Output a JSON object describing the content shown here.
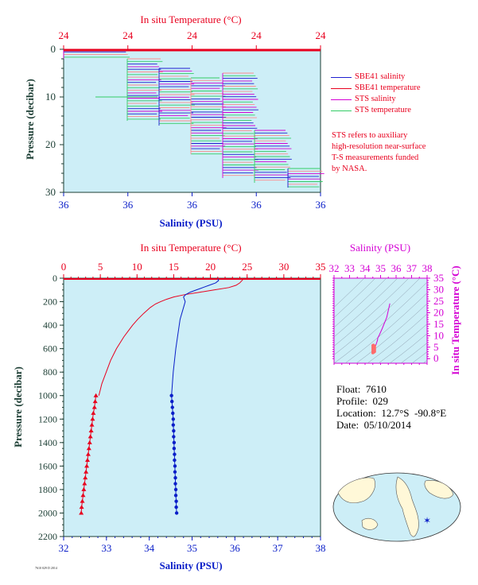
{
  "chart_data": [
    {
      "type": "line",
      "title": "",
      "top_axis": {
        "label": "In situ Temperature (°C)",
        "ticks": [
          "24",
          "24",
          "24",
          "24",
          "24"
        ]
      },
      "bottom_axis": {
        "label": "Salinity (PSU)",
        "ticks": [
          "36",
          "36",
          "36",
          "36",
          "36"
        ]
      },
      "left_axis": {
        "label": "Pressure (decibar)",
        "ticks": [
          0,
          10,
          20,
          30
        ],
        "ylim": [
          0,
          30
        ],
        "inverted": true
      },
      "legend": [
        {
          "name": "SBE41 salinity",
          "color": "#1f1fd0"
        },
        {
          "name": "SBE41 temperature",
          "color": "#e8001e"
        },
        {
          "name": "STS salinity",
          "color": "#d400d4"
        },
        {
          "name": "STS temperature",
          "color": "#33cc66"
        }
      ],
      "note": [
        "STS refers to auxiliary",
        "high-resolution near-surface",
        "T-S measurements funded",
        "by NASA."
      ],
      "colors": {
        "background": "#cdeef7",
        "sbe_sal": "#1f1fd0",
        "sbe_temp": "#e8001e",
        "sts_sal": "#d400d4",
        "sts_temp": "#33cc66",
        "sts_temp_light": "#ff8c8c"
      }
    },
    {
      "type": "line",
      "title": "",
      "top_axis": {
        "label": "In situ Temperature (°C)",
        "ticks": [
          0,
          5,
          10,
          15,
          20,
          25,
          30,
          35
        ],
        "xlim": [
          0,
          35
        ]
      },
      "bottom_axis": {
        "label": "Salinity (PSU)",
        "ticks": [
          32,
          33,
          34,
          35,
          36,
          37,
          38
        ],
        "xlim": [
          32,
          38
        ]
      },
      "left_axis": {
        "label": "Pressure (decibar)",
        "ticks": [
          0,
          200,
          400,
          600,
          800,
          1000,
          1200,
          1400,
          1600,
          1800,
          2000,
          2200
        ],
        "ylim": [
          0,
          2200
        ],
        "inverted": true
      },
      "series": [
        {
          "name": "temperature",
          "color": "#e8001e",
          "pressure": [
            5,
            20,
            40,
            60,
            80,
            100,
            120,
            140,
            160,
            180,
            200,
            220,
            250,
            300,
            350,
            400,
            450,
            500,
            550,
            600,
            650,
            700,
            750,
            800,
            850,
            900,
            950,
            1000
          ],
          "values": [
            24.5,
            24.3,
            24.0,
            23.5,
            22.5,
            20.5,
            18.5,
            16.5,
            15.0,
            14.0,
            13.2,
            12.5,
            11.8,
            10.9,
            10.1,
            9.4,
            8.8,
            8.2,
            7.7,
            7.2,
            6.8,
            6.4,
            6.1,
            5.8,
            5.5,
            5.2,
            5.0,
            4.8
          ]
        },
        {
          "name": "temperature_bottle",
          "color": "#e8001e",
          "pressure": [
            1000,
            1050,
            1100,
            1150,
            1200,
            1250,
            1300,
            1350,
            1400,
            1450,
            1500,
            1550,
            1600,
            1650,
            1700,
            1750,
            1800,
            1850,
            1900,
            1950,
            2000
          ],
          "values": [
            4.4,
            4.3,
            4.2,
            4.05,
            3.95,
            3.85,
            3.75,
            3.65,
            3.55,
            3.45,
            3.35,
            3.25,
            3.15,
            3.05,
            2.95,
            2.85,
            2.75,
            2.65,
            2.55,
            2.45,
            2.4
          ]
        },
        {
          "name": "salinity",
          "color": "#0a1ec8",
          "pressure": [
            5,
            20,
            40,
            60,
            80,
            100,
            120,
            140,
            160,
            180,
            200,
            250,
            300,
            350,
            400,
            450,
            500,
            600,
            700,
            800,
            900,
            1000
          ],
          "values": [
            35.6,
            35.62,
            35.55,
            35.4,
            35.25,
            35.1,
            34.95,
            34.85,
            34.8,
            34.82,
            34.84,
            34.8,
            34.76,
            34.72,
            34.7,
            34.68,
            34.66,
            34.62,
            34.59,
            34.56,
            34.54,
            34.52
          ]
        },
        {
          "name": "salinity_bottle",
          "color": "#0a1ec8",
          "pressure": [
            1000,
            1050,
            1100,
            1150,
            1200,
            1250,
            1300,
            1350,
            1400,
            1450,
            1500,
            1550,
            1600,
            1650,
            1700,
            1750,
            1800,
            1850,
            1900,
            1950,
            2000
          ],
          "values": [
            34.52,
            34.53,
            34.54,
            34.55,
            34.56,
            34.56,
            34.57,
            34.57,
            34.58,
            34.58,
            34.59,
            34.59,
            34.6,
            34.6,
            34.61,
            34.61,
            34.62,
            34.62,
            34.63,
            34.63,
            34.64
          ]
        }
      ],
      "colors": {
        "background": "#cdeef7",
        "temp": "#e8001e",
        "sal": "#0a1ec8",
        "axis_label_left": "#1b3d33"
      }
    },
    {
      "type": "scatter",
      "title": "",
      "top_axis": {
        "label": "Salinity (PSU)",
        "ticks": [
          32,
          33,
          34,
          35,
          36,
          37,
          38
        ],
        "xlim": [
          32,
          38
        ]
      },
      "right_axis": {
        "label": "In situ Temperature (°C)",
        "ticks": [
          0,
          5,
          10,
          15,
          20,
          25,
          30,
          35
        ],
        "ylim": [
          -2,
          35
        ]
      },
      "series": [
        {
          "name": "ts",
          "color": "#d400d4",
          "x": [
            34.55,
            34.52,
            34.6,
            34.7,
            34.75,
            34.8,
            34.82,
            34.9,
            35.1,
            35.4,
            35.6
          ],
          "y": [
            3,
            4,
            5,
            6,
            7,
            8,
            9,
            10,
            13,
            18,
            24
          ]
        }
      ],
      "colors": {
        "background": "#cdeef7",
        "axis": "#d400d4",
        "highlight": "#ff6b6b"
      }
    }
  ],
  "meta": {
    "float": "Float:  7610",
    "profile": "Profile:  029",
    "location": "Location:  12.7°S  -90.8°E",
    "date": "Date:  05/10/2014"
  },
  "footer_tag": "7610 029 D 2014"
}
